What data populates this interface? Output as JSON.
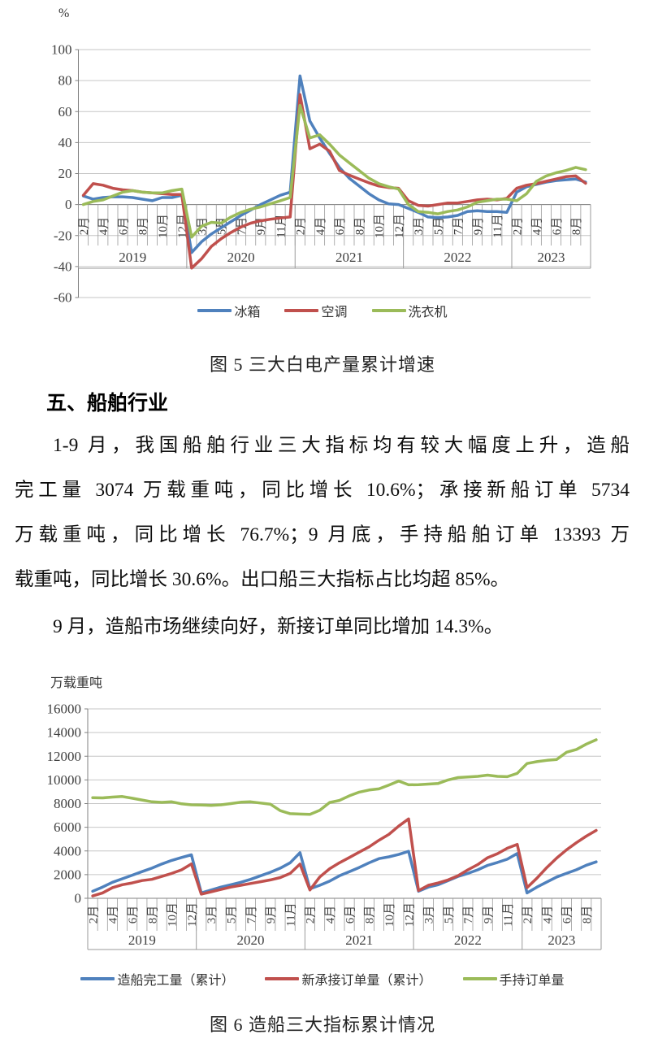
{
  "figure5": {
    "unit_label": "%",
    "caption": "图 5 三大白电产量累计增速",
    "legend": [
      {
        "label": "冰箱",
        "color": "#4F81BD"
      },
      {
        "label": "空调",
        "color": "#C0504D"
      },
      {
        "label": "洗衣机",
        "color": "#9BBB59"
      }
    ]
  },
  "section": {
    "heading": "五、船舶行业",
    "para1_lines": [
      "1-9 月，我国船舶行业三大指标均有较大幅度上升，造船",
      "完工量 3074 万载重吨，同比增长 10.6%；承接新船订单 5734",
      "万载重吨，同比增长 76.7%；9 月底，手持船舶订单 13393 万",
      "载重吨，同比增长 30.6%。出口船三大指标占比均超 85%。"
    ],
    "para2": "9 月，造船市场继续向好，新接订单同比增加 14.3%。"
  },
  "figure6": {
    "unit_label": "万载重吨",
    "caption": "图 6 造船三大指标累计情况",
    "legend": [
      {
        "label": "造船完工量（累计）",
        "color": "#4F81BD"
      },
      {
        "label": "新承接订单量（累计）",
        "color": "#C0504D"
      },
      {
        "label": "手持订单量",
        "color": "#9BBB59"
      }
    ]
  },
  "chart_data": [
    {
      "type": "line",
      "title": "图 5 三大白电产量累计增速",
      "ylabel": "%",
      "ylim": [
        -60,
        100
      ],
      "ytick_step": 20,
      "grid": true,
      "legend_position": "bottom",
      "months_per_year": [
        "2月",
        "3月",
        "4月",
        "5月",
        "6月",
        "7月",
        "8月",
        "9月",
        "10月",
        "11月",
        "12月"
      ],
      "year_groups": [
        {
          "label": "2019",
          "n": 11
        },
        {
          "label": "2020",
          "n": 11
        },
        {
          "label": "2021",
          "n": 11
        },
        {
          "label": "2022",
          "n": 11
        },
        {
          "label": "2023",
          "n": 8
        }
      ],
      "series": [
        {
          "name": "冰箱",
          "color": "#4F81BD",
          "values": [
            5.5,
            3.5,
            4.5,
            5,
            5,
            4.5,
            3.5,
            2.5,
            4.5,
            4.5,
            6,
            -31,
            -24,
            -19,
            -15,
            -11,
            -7,
            -3.5,
            0,
            3,
            6,
            8,
            83,
            54,
            43,
            33,
            24,
            17,
            12,
            7,
            3,
            0.5,
            0,
            -2.5,
            -5,
            -8,
            -8.5,
            -8,
            -7,
            -4.5,
            -4,
            -4.5,
            -4.5,
            -5,
            8,
            11.5,
            13,
            14.5,
            15.5,
            16,
            16.5,
            14.5
          ]
        },
        {
          "name": "空调",
          "color": "#C0504D",
          "values": [
            6,
            13.5,
            12.5,
            10.5,
            9.5,
            9,
            8,
            7.5,
            7,
            6.5,
            6.5,
            -41,
            -35,
            -27,
            -22,
            -18,
            -14.5,
            -12,
            -10.5,
            -9.5,
            -8.7,
            -8,
            71,
            36,
            39,
            34.5,
            22,
            19,
            16.5,
            14,
            12,
            11,
            10.5,
            2.5,
            -0.5,
            -1,
            0,
            1,
            1,
            2,
            3,
            3.5,
            3,
            4,
            10.5,
            12.5,
            13.5,
            15,
            16.5,
            18,
            18.5,
            13.7
          ]
        },
        {
          "name": "洗衣机",
          "color": "#9BBB59",
          "values": [
            0,
            2,
            3,
            5.5,
            8,
            9,
            8,
            7.5,
            7.5,
            9,
            10,
            -21,
            -14,
            -11.5,
            -12,
            -8,
            -5,
            -3,
            -1.5,
            0.5,
            2.5,
            4.5,
            64,
            43,
            45,
            39,
            32,
            27,
            22,
            17,
            13.5,
            11.5,
            10,
            0,
            -4.5,
            -5,
            -6,
            -4.5,
            -3.5,
            -1.5,
            1.5,
            2.5,
            3.5,
            3.5,
            2.5,
            7,
            15,
            18.5,
            20.5,
            22,
            24,
            22.5
          ]
        }
      ]
    },
    {
      "type": "line",
      "title": "图 6 造船三大指标累计情况",
      "ylabel": "万载重吨",
      "ylim": [
        0,
        16000
      ],
      "ytick_step": 2000,
      "grid": true,
      "legend_position": "bottom",
      "months_per_year": [
        "2月",
        "3月",
        "4月",
        "5月",
        "6月",
        "7月",
        "8月",
        "9月",
        "10月",
        "11月",
        "12月"
      ],
      "year_groups": [
        {
          "label": "2019",
          "n": 11
        },
        {
          "label": "2020",
          "n": 11
        },
        {
          "label": "2021",
          "n": 11
        },
        {
          "label": "2022",
          "n": 11
        },
        {
          "label": "2023",
          "n": 8
        }
      ],
      "series": [
        {
          "name": "造船完工量（累计）",
          "color": "#4F81BD",
          "values": [
            600,
            950,
            1350,
            1650,
            1950,
            2250,
            2550,
            2900,
            3200,
            3450,
            3672,
            450,
            700,
            950,
            1150,
            1350,
            1600,
            1900,
            2200,
            2550,
            3000,
            3853,
            800,
            1100,
            1450,
            1900,
            2250,
            2600,
            3000,
            3350,
            3500,
            3700,
            3970,
            600,
            950,
            1150,
            1500,
            1850,
            2100,
            2400,
            2780,
            3030,
            3300,
            3786,
            450,
            950,
            1380,
            1800,
            2113,
            2409,
            2798,
            3074
          ]
        },
        {
          "name": "新承接订单量（累计）",
          "color": "#C0504D",
          "values": [
            200,
            450,
            900,
            1150,
            1300,
            1500,
            1600,
            1850,
            2100,
            2400,
            2907,
            350,
            550,
            750,
            950,
            1100,
            1250,
            1400,
            1550,
            1750,
            2100,
            2893,
            700,
            1800,
            2500,
            3000,
            3450,
            3900,
            4350,
            4900,
            5400,
            6100,
            6707,
            650,
            1100,
            1300,
            1550,
            1900,
            2400,
            2850,
            3430,
            3770,
            4230,
            4552,
            900,
            1700,
            2600,
            3400,
            4100,
            4700,
            5250,
            5734
          ]
        },
        {
          "name": "手持订单量",
          "color": "#9BBB59",
          "values": [
            8500,
            8480,
            8550,
            8600,
            8450,
            8300,
            8150,
            8100,
            8150,
            7980,
            7900,
            7880,
            7850,
            7900,
            8000,
            8120,
            8150,
            8050,
            7950,
            7400,
            7150,
            7111,
            7086,
            7435,
            8093,
            8270,
            8660,
            8970,
            9150,
            9240,
            9560,
            9900,
            9584,
            9600,
            9650,
            9700,
            10000,
            10200,
            10250,
            10300,
            10400,
            10300,
            10270,
            10557,
            11383,
            11543,
            11650,
            11730,
            12343,
            12571,
            13029,
            13393
          ]
        }
      ]
    }
  ]
}
